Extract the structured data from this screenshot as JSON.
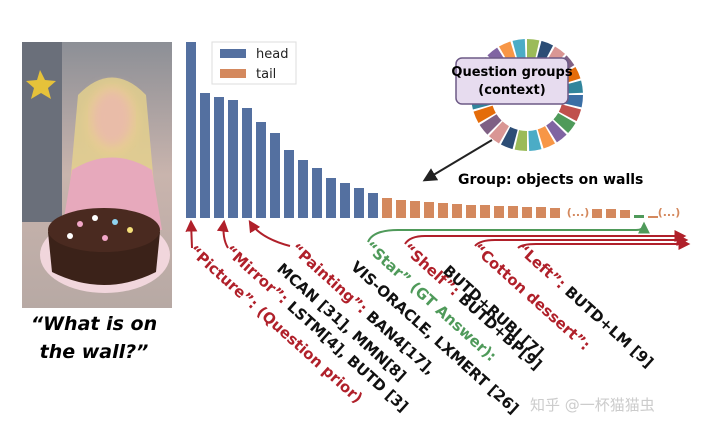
{
  "chart_data": {
    "type": "bar",
    "series": [
      {
        "name": "head",
        "color": "#5470a0",
        "values": [
          176,
          125,
          121,
          118,
          110,
          96,
          85,
          68,
          58,
          50,
          40,
          35,
          30,
          25,
          null,
          null,
          null,
          null,
          null,
          null,
          null,
          null,
          null,
          null,
          null,
          null,
          null,
          null,
          null,
          null,
          null,
          null,
          null,
          null,
          null
        ]
      },
      {
        "name": "tail",
        "color": "#d4895e",
        "values": [
          null,
          null,
          null,
          null,
          null,
          null,
          null,
          null,
          null,
          null,
          null,
          null,
          null,
          null,
          20,
          18,
          17,
          16,
          15,
          14,
          13,
          13,
          12,
          12,
          11,
          11,
          10,
          null,
          null,
          9,
          9,
          8,
          3,
          2,
          null
        ]
      }
    ],
    "highlight": {
      "index": 32,
      "color": "#4f9a5a"
    },
    "gap_labels": [
      "(...)",
      "(...)"
    ],
    "legend": "top-left"
  },
  "caption": [
    "“What is on",
    "the wall?”"
  ],
  "context_box": [
    "Question groups",
    "(context)"
  ],
  "group_label": "Group: objects on walls",
  "labels": [
    {
      "parts": [
        "“Picture”: (Question prior)"
      ]
    },
    {
      "parts": [
        "“Mirror”:",
        " LSTM[4], BUTD [3]"
      ]
    },
    {
      "parts": [
        "“Painting”:",
        " BAN4[17],"
      ]
    },
    {
      "parts": [
        "MCAN [31], MMN[8]"
      ]
    },
    {
      "parts": [
        "“Star” (GT Answer):"
      ]
    },
    {
      "parts": [
        "VIS-ORACLE, LXMERT [26]"
      ]
    },
    {
      "parts": [
        "“Shelf”:",
        " BUTD+BP[9]"
      ]
    },
    {
      "parts": [
        "BUTD+RUBI [7]"
      ]
    },
    {
      "parts": [
        "“Cotton dessert”:"
      ]
    },
    {
      "parts": [
        "“Left”:",
        " BUTD+LM [9]"
      ]
    }
  ],
  "watermark": "知乎 @一杯猫猫虫"
}
